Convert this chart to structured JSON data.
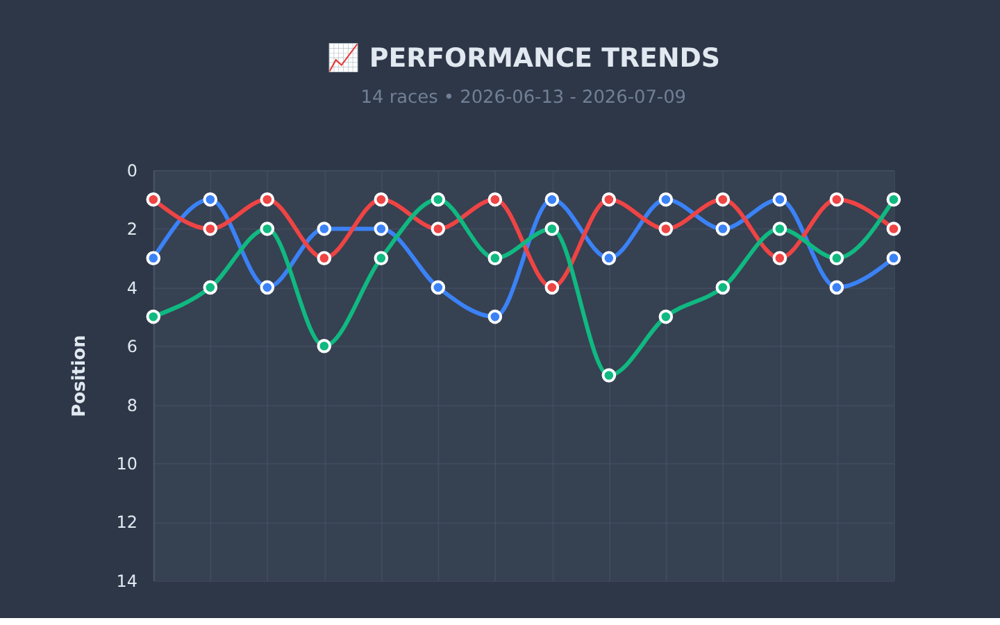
{
  "chart_data": {
    "type": "line",
    "title": "📈 PERFORMANCE TRENDS",
    "subtitle": "14 races • 2026-06-13 - 2026-07-09",
    "ylabel": "Position",
    "categories": [
      null,
      null,
      null,
      null,
      null,
      null,
      null,
      null,
      null,
      null,
      null,
      null,
      null,
      null
    ],
    "series": [
      {
        "color": "#3b82f6",
        "values": [
          3,
          1,
          4,
          2,
          2,
          4,
          5,
          1,
          3,
          1,
          2,
          1,
          4,
          3
        ]
      },
      {
        "color": "#ef4444",
        "values": [
          1,
          2,
          1,
          3,
          1,
          2,
          1,
          4,
          1,
          2,
          1,
          3,
          1,
          2
        ]
      },
      {
        "color": "#10b981",
        "values": [
          5,
          4,
          2,
          6,
          3,
          1,
          3,
          2,
          7,
          5,
          4,
          2,
          3,
          1
        ]
      }
    ],
    "ylim": [
      14,
      0
    ],
    "yticks": [
      0,
      2,
      4,
      6,
      8,
      10,
      12,
      14
    ],
    "grid": true,
    "marker": "circle",
    "line_style": "solid",
    "legend": false,
    "tick_labels": "y"
  }
}
